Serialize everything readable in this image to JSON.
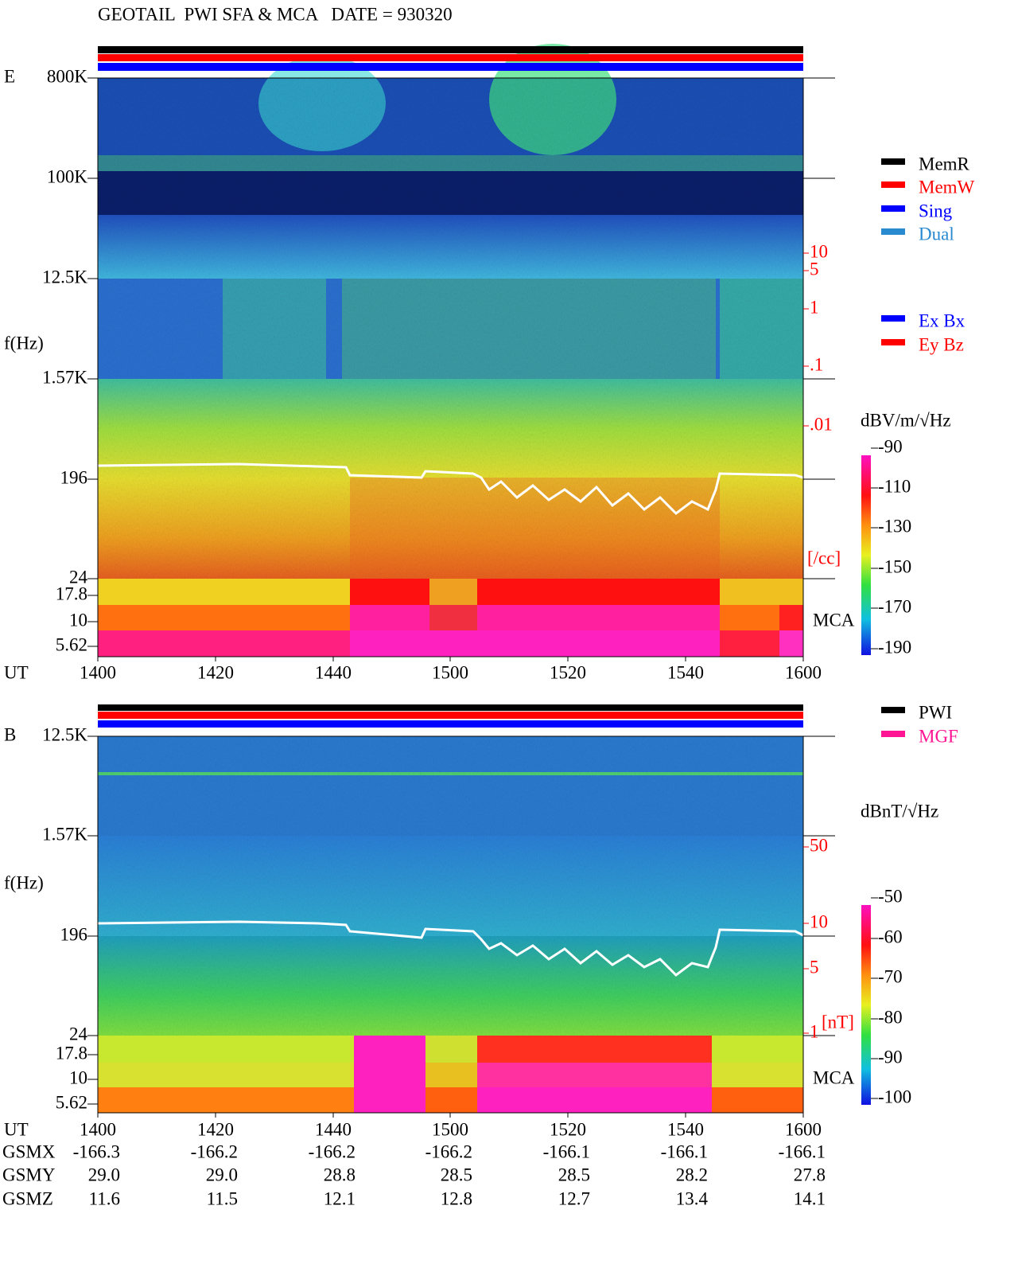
{
  "title": "GEOTAIL  PWI SFA & MCA   DATE = 930320",
  "panels": [
    {
      "label": "E",
      "y_axis_label": "f(Hz)",
      "y_ticks": [
        "800K",
        "100K",
        "12.5K",
        "1.57K",
        "196",
        "24",
        "17.8",
        "10",
        "5.62"
      ],
      "x_axis_label": "UT",
      "x_ticks": [
        "1400",
        "1420",
        "1440",
        "1500",
        "1520",
        "1540",
        "1600"
      ],
      "right_ticks": [
        "10",
        "5",
        "1",
        ".1",
        ".01"
      ],
      "right_unit": "[/cc]",
      "mca_label": "MCA",
      "legend": [
        "MemR",
        "MemW",
        "Sing",
        "Dual"
      ],
      "legend2": [
        "Ex Bx",
        "Ey Bz"
      ],
      "colorbar_label": "dBV/m/√Hz",
      "colorbar_ticks": [
        "-90",
        "-110",
        "-130",
        "-150",
        "-170",
        "-190"
      ]
    },
    {
      "label": "B",
      "y_axis_label": "f(Hz)",
      "y_ticks": [
        "12.5K",
        "1.57K",
        "196",
        "24",
        "17.8",
        "10",
        "5.62"
      ],
      "x_axis_label": "UT",
      "x_ticks": [
        "1400",
        "1420",
        "1440",
        "1500",
        "1520",
        "1540",
        "1600"
      ],
      "right_ticks": [
        "50",
        "10",
        "5",
        "1"
      ],
      "right_unit": "[nT]",
      "mca_label": "MCA",
      "legend": [
        "PWI",
        "MGF"
      ],
      "colorbar_label": "dBnT/√Hz",
      "colorbar_ticks": [
        "-50",
        "-60",
        "-70",
        "-80",
        "-90",
        "-100"
      ]
    }
  ],
  "orbit": {
    "rows": [
      {
        "name": "GSMX",
        "values": [
          "-166.3",
          "-166.2",
          "-166.2",
          "-166.2",
          "-166.1",
          "-166.1",
          "-166.1"
        ]
      },
      {
        "name": "GSMY",
        "values": [
          "29.0",
          "29.0",
          "28.8",
          "28.5",
          "28.5",
          "28.2",
          "27.8"
        ]
      },
      {
        "name": "GSMZ",
        "values": [
          "11.6",
          "11.5",
          "12.1",
          "12.8",
          "12.7",
          "13.4",
          "14.1"
        ]
      }
    ]
  }
}
